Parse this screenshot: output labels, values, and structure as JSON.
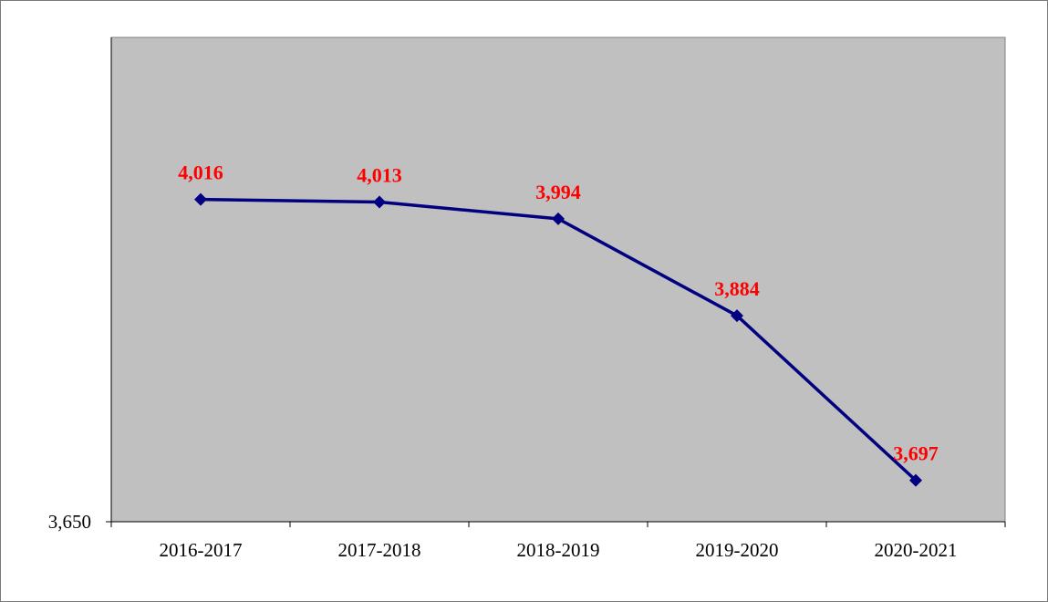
{
  "chart_data": {
    "type": "line",
    "title": "",
    "xlabel": "",
    "ylabel": "",
    "categories": [
      "2016-2017",
      "2017-2018",
      "2018-2019",
      "2019-2020",
      "2020-2021"
    ],
    "series": [
      {
        "values": [
          4016,
          4013,
          3994,
          3884,
          3697
        ]
      }
    ],
    "data_labels": [
      "4,016",
      "4,013",
      "3,994",
      "3,884",
      "3,697"
    ],
    "y_tick_labels": [
      {
        "value": 3650,
        "label": "3,650"
      }
    ],
    "ylim": [
      3650,
      4200
    ],
    "grid": false,
    "legend": "none",
    "marker": "diamond",
    "colors": {
      "plot_background": "#c0c0c0",
      "line": "#000080",
      "data_label": "#ff0000"
    }
  }
}
